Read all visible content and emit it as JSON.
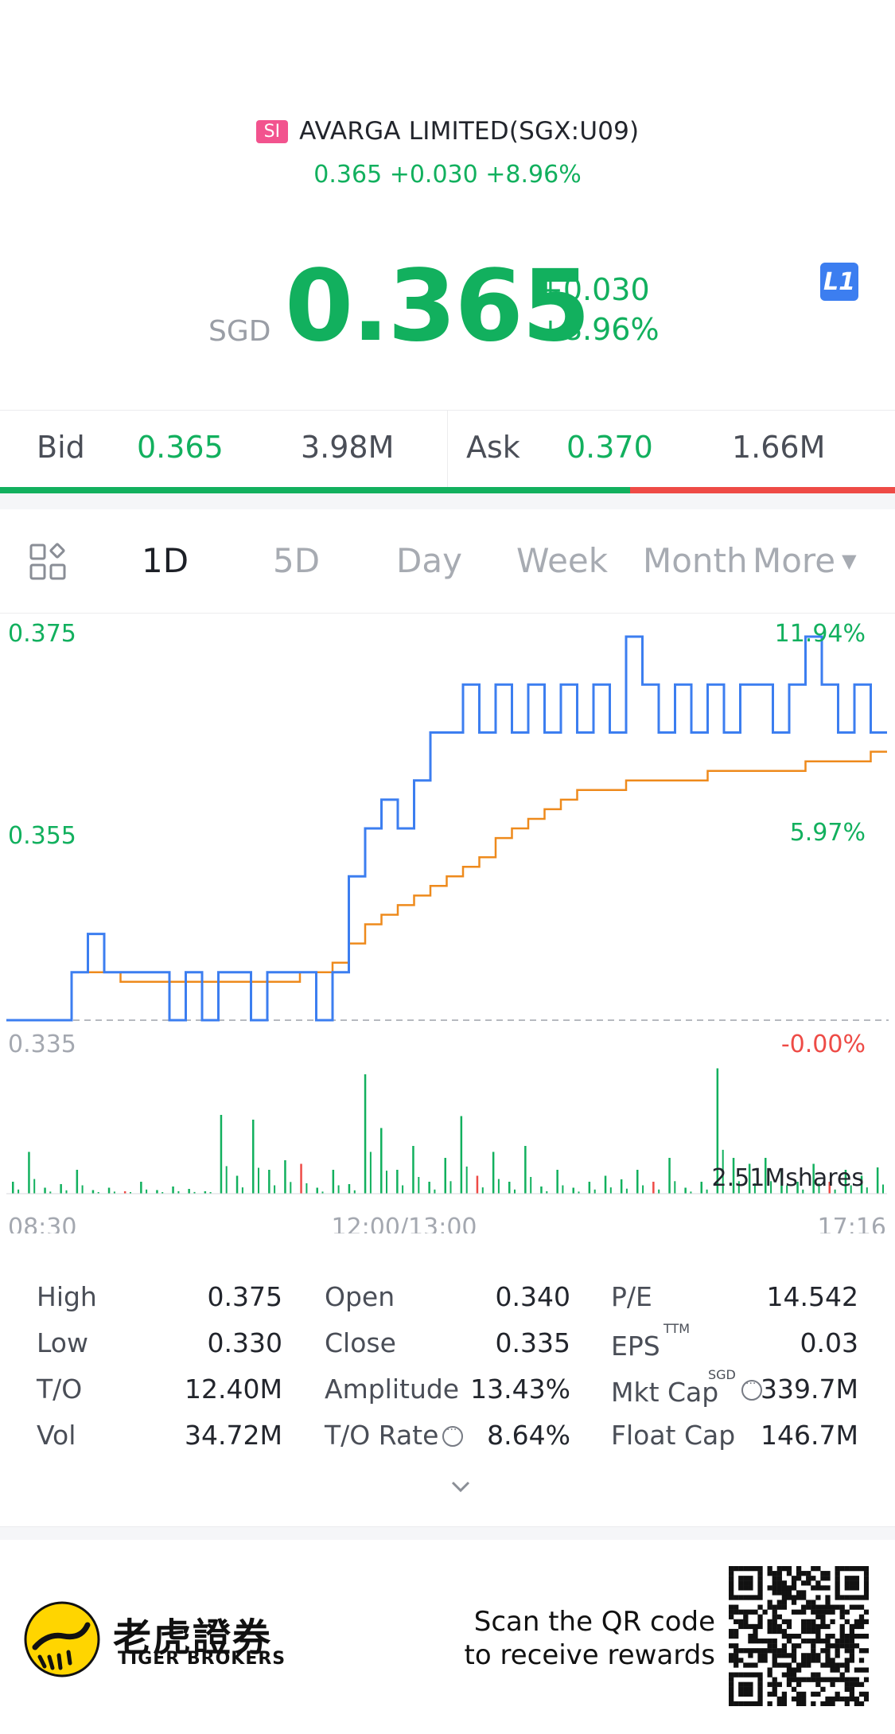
{
  "header": {
    "badge": "SI",
    "name": "AVARGA LIMITED(SGX:U09)",
    "sub_quote": "0.365 +0.030 +8.96%"
  },
  "quote": {
    "currency": "SGD",
    "price": "0.365",
    "change": "+0.030",
    "change_pct": "+8.96%",
    "level_badge": "L1"
  },
  "order_book": {
    "bid_label": "Bid",
    "bid_price": "0.365",
    "bid_size": "3.98M",
    "ask_label": "Ask",
    "ask_price": "0.370",
    "ask_size": "1.66M",
    "bid_ratio": 0.704
  },
  "tabs": [
    "1D",
    "5D",
    "Day",
    "Week",
    "Month",
    "More"
  ],
  "active_tab": "1D",
  "chart_data": {
    "type": "line",
    "series": [
      {
        "values": [
          0.335,
          0.335,
          0.335,
          0.335,
          0.34,
          0.344,
          0.34,
          0.34,
          0.34,
          0.34,
          0.335,
          0.34,
          0.335,
          0.34,
          0.34,
          0.335,
          0.34,
          0.34,
          0.34,
          0.335,
          0.34,
          0.35,
          0.355,
          0.358,
          0.355,
          0.36,
          0.365,
          0.365,
          0.37,
          0.365,
          0.37,
          0.365,
          0.37,
          0.365,
          0.37,
          0.365,
          0.37,
          0.365,
          0.375,
          0.37,
          0.365,
          0.37,
          0.365,
          0.37,
          0.365,
          0.37,
          0.37,
          0.365,
          0.37,
          0.375,
          0.37,
          0.365,
          0.37,
          0.365,
          0.365
        ]
      },
      {
        "values": [
          0.335,
          0.335,
          0.335,
          0.335,
          0.34,
          0.34,
          0.34,
          0.339,
          0.339,
          0.339,
          0.339,
          0.339,
          0.339,
          0.339,
          0.339,
          0.339,
          0.339,
          0.339,
          0.34,
          0.34,
          0.341,
          0.343,
          0.345,
          0.346,
          0.347,
          0.348,
          0.349,
          0.35,
          0.351,
          0.352,
          0.354,
          0.355,
          0.356,
          0.357,
          0.358,
          0.359,
          0.359,
          0.359,
          0.36,
          0.36,
          0.36,
          0.36,
          0.36,
          0.361,
          0.361,
          0.361,
          0.361,
          0.361,
          0.361,
          0.362,
          0.362,
          0.362,
          0.362,
          0.363,
          0.363
        ]
      }
    ],
    "volume": [
      0.1,
      0.35,
      0.05,
      0.08,
      0.2,
      0.03,
      0.05,
      0.02,
      0.1,
      0.03,
      0.06,
      0.04,
      0.02,
      0.66,
      0.15,
      0.62,
      0.2,
      0.28,
      0.25,
      0.05,
      0.2,
      0.08,
      1.0,
      0.55,
      0.2,
      0.4,
      0.1,
      0.3,
      0.65,
      0.15,
      0.35,
      0.1,
      0.4,
      0.06,
      0.2,
      0.05,
      0.1,
      0.15,
      0.12,
      0.2,
      0.1,
      0.3,
      0.05,
      0.1,
      1.05,
      0.3,
      0.25,
      0.3,
      0.2,
      0.1,
      0.25,
      0.1,
      0.2,
      0.15,
      0.22
    ],
    "y_labels": {
      "top": "0.375",
      "mid": "0.355",
      "bottom": "0.335"
    },
    "pct_labels": {
      "top": "11.94%",
      "mid": "5.97%",
      "bottom": "-0.00%"
    },
    "ylim": [
      0.335,
      0.375
    ],
    "volume_label": "2.51Mshares",
    "x_labels": [
      "08:30",
      "12:00/13:00",
      "17:16"
    ],
    "colors": {
      "price": "#3c7ef0",
      "avg": "#ee8a1c",
      "up": "#12b05e",
      "down": "#ee4b46"
    }
  },
  "stats": [
    [
      {
        "label": "High",
        "value": "0.375"
      },
      {
        "label": "Open",
        "value": "0.340"
      },
      {
        "label": "P/E",
        "value": "14.542"
      }
    ],
    [
      {
        "label": "Low",
        "value": "0.330"
      },
      {
        "label": "Close",
        "value": "0.335"
      },
      {
        "label": "EPS",
        "value": "0.03",
        "sup": "TTM"
      }
    ],
    [
      {
        "label": "T/O",
        "value": "12.40M"
      },
      {
        "label": "Amplitude",
        "value": "13.43%"
      },
      {
        "label": "Mkt Cap",
        "value": "339.7M",
        "sup": "SGD"
      }
    ],
    [
      {
        "label": "Vol",
        "value": "34.72M"
      },
      {
        "label": "T/O Rate",
        "value": "8.64%"
      },
      {
        "label": "Float Cap",
        "value": "146.7M"
      }
    ]
  ],
  "footer": {
    "brand_cn": "老虎證券",
    "brand_en": "TIGER BROKERS",
    "scan_line1": "Scan the QR code",
    "scan_line2": "to receive rewards"
  }
}
